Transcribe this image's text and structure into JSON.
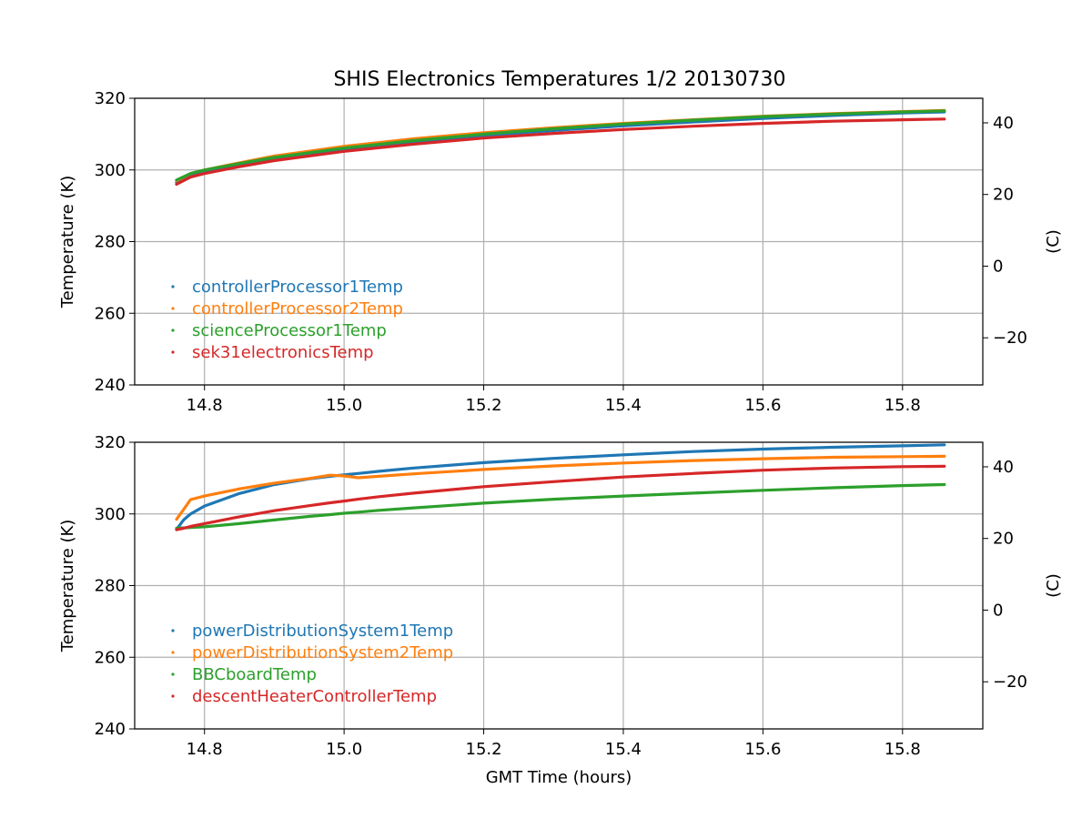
{
  "chart_data": [
    {
      "type": "line",
      "title": "SHIS Electronics Temperatures 1/2 20130730",
      "xlabel": "",
      "ylabel": "Temperature (K)",
      "ylabel_right": "(C)",
      "xlim": [
        14.7,
        15.915
      ],
      "ylim": [
        240,
        320
      ],
      "ylim_right_celsius": [
        -33.15,
        46.85
      ],
      "xticks": [
        "14.8",
        "15.0",
        "15.2",
        "15.4",
        "15.6",
        "15.8"
      ],
      "yticks": [
        "240",
        "260",
        "280",
        "300",
        "320"
      ],
      "yticks_right": [
        "−20",
        "0",
        "20",
        "40"
      ],
      "grid": true,
      "legend_position": "lower-left",
      "x": [
        14.76,
        14.78,
        14.8,
        14.85,
        14.9,
        15.0,
        15.1,
        15.2,
        15.3,
        15.4,
        15.5,
        15.6,
        15.7,
        15.8,
        15.86
      ],
      "series": [
        {
          "name": "controllerProcessor1Temp",
          "color": "#1f77b4",
          "values": [
            296.5,
            298.5,
            299.5,
            301.5,
            303.3,
            305.8,
            307.9,
            309.6,
            311.0,
            312.3,
            313.4,
            314.4,
            315.2,
            315.9,
            316.2
          ]
        },
        {
          "name": "controllerProcessor2Temp",
          "color": "#ff7f0e",
          "values": [
            297.0,
            299.0,
            300.0,
            302.0,
            303.9,
            306.6,
            308.7,
            310.4,
            311.8,
            313.0,
            314.0,
            315.0,
            315.7,
            316.3,
            316.6
          ]
        },
        {
          "name": "scienceProcessor1Temp",
          "color": "#2ca02c",
          "values": [
            297.2,
            299.0,
            300.0,
            301.8,
            303.5,
            306.1,
            308.2,
            310.0,
            311.5,
            312.8,
            313.9,
            314.9,
            315.6,
            316.2,
            316.5
          ]
        },
        {
          "name": "sek31electronicsTemp",
          "color": "#d62728",
          "values": [
            296.0,
            298.0,
            299.0,
            300.9,
            302.6,
            305.2,
            307.2,
            308.9,
            310.2,
            311.3,
            312.2,
            313.0,
            313.6,
            314.0,
            314.2
          ]
        }
      ]
    },
    {
      "type": "line",
      "title": "",
      "xlabel": "GMT Time (hours)",
      "ylabel": "Temperature (K)",
      "ylabel_right": "(C)",
      "xlim": [
        14.7,
        15.915
      ],
      "ylim": [
        240,
        320
      ],
      "ylim_right_celsius": [
        -33.15,
        46.85
      ],
      "xticks": [
        "14.8",
        "15.0",
        "15.2",
        "15.4",
        "15.6",
        "15.8"
      ],
      "yticks": [
        "240",
        "260",
        "280",
        "300",
        "320"
      ],
      "yticks_right": [
        "−20",
        "0",
        "20",
        "40"
      ],
      "grid": true,
      "legend_position": "lower-left",
      "x": [
        14.76,
        14.77,
        14.78,
        14.8,
        14.85,
        14.9,
        14.95,
        14.98,
        15.0,
        15.02,
        15.05,
        15.1,
        15.2,
        15.3,
        15.4,
        15.5,
        15.6,
        15.7,
        15.8,
        15.86
      ],
      "series": [
        {
          "name": "powerDistributionSystem1Temp",
          "color": "#1f77b4",
          "values": [
            295.7,
            298.3,
            300.0,
            302.2,
            305.7,
            308.2,
            309.8,
            310.5,
            310.9,
            311.3,
            311.9,
            312.8,
            314.3,
            315.5,
            316.5,
            317.4,
            318.1,
            318.6,
            319.0,
            319.3
          ]
        },
        {
          "name": "powerDistributionSystem2Temp",
          "color": "#ff7f0e",
          "values": [
            298.5,
            301.2,
            304.0,
            305.0,
            307.0,
            308.6,
            309.9,
            310.8,
            310.6,
            310.1,
            310.5,
            311.2,
            312.4,
            313.4,
            314.2,
            314.9,
            315.4,
            315.8,
            316.0,
            316.1
          ]
        },
        {
          "name": "BBCboardTemp",
          "color": "#2ca02c",
          "values": [
            296.0,
            296.1,
            296.2,
            296.4,
            297.3,
            298.3,
            299.3,
            299.8,
            300.2,
            300.5,
            301.0,
            301.7,
            303.0,
            304.1,
            305.0,
            305.8,
            306.6,
            307.3,
            307.9,
            308.2
          ]
        },
        {
          "name": "descentHeaterControllerTemp",
          "color": "#d62728",
          "values": [
            295.6,
            296.0,
            296.5,
            297.3,
            299.2,
            300.9,
            302.3,
            303.1,
            303.6,
            304.1,
            304.8,
            305.8,
            307.6,
            309.0,
            310.3,
            311.3,
            312.2,
            312.8,
            313.2,
            313.3
          ]
        }
      ]
    }
  ]
}
